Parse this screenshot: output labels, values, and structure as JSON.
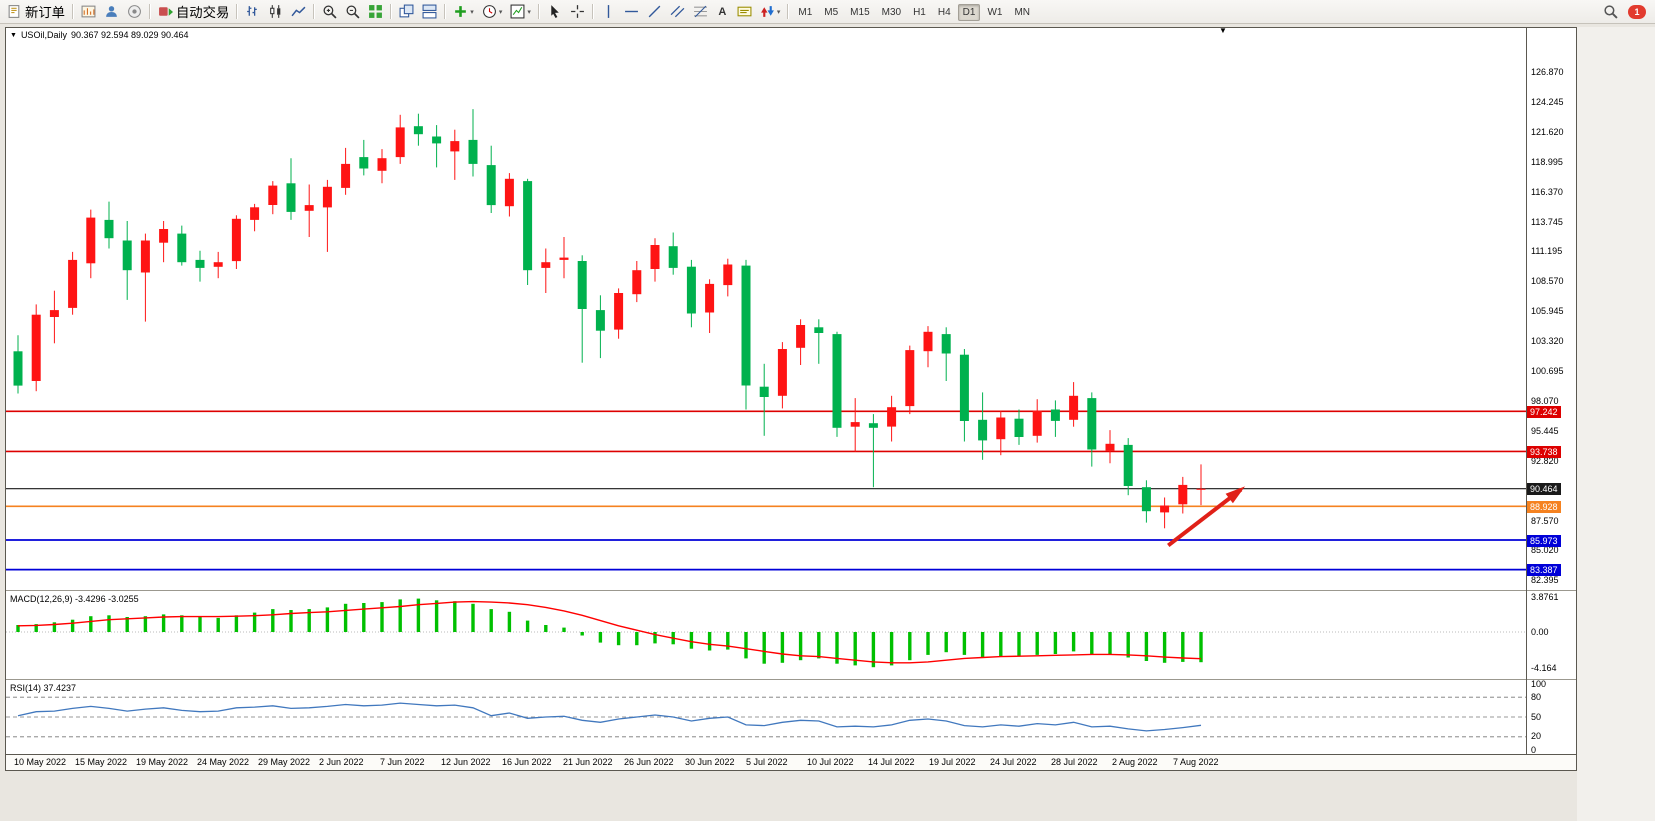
{
  "toolbar": {
    "new_order_label": "新订单",
    "auto_trading_label": "自动交易",
    "timeframes": [
      "M1",
      "M5",
      "M15",
      "M30",
      "H1",
      "H4",
      "D1",
      "W1",
      "MN"
    ],
    "active_timeframe": "D1",
    "notification_badge": "1"
  },
  "chart": {
    "collapse_icon": "▼",
    "symbol_title": "USOil,Daily",
    "quote_ohlc": "90.367 92.594 89.029 90.464",
    "shift_marker": "▼",
    "price_axis_labels": [
      "126.870",
      "124.245",
      "121.620",
      "118.995",
      "116.370",
      "113.745",
      "111.195",
      "108.570",
      "105.945",
      "103.320",
      "100.695",
      "98.070",
      "95.445",
      "92.820",
      "87.570",
      "85.020",
      "82.395"
    ],
    "hlines": [
      {
        "label": "97.242",
        "price": 97.242,
        "color": "#dd0000",
        "width": 1.6
      },
      {
        "label": "93.738",
        "price": 93.738,
        "color": "#dd0000",
        "width": 1.6
      },
      {
        "label": "90.464",
        "price": 90.464,
        "color": "#1a1a1a",
        "width": 1.1
      },
      {
        "label": "88.928",
        "price": 88.928,
        "color": "#f58220",
        "width": 1.6
      },
      {
        "label": "85.973",
        "price": 85.973,
        "color": "#0000d8",
        "width": 1.8
      },
      {
        "label": "83.387",
        "price": 83.387,
        "color": "#0000d8",
        "width": 1.8
      }
    ],
    "arrow": {
      "from_index": 63.2,
      "from_price": 85.5,
      "to_index": 67.2,
      "to_price": 90.4,
      "color": "#e02018"
    },
    "date_axis_labels": [
      "10 May 2022",
      "15 May 2022",
      "19 May 2022",
      "24 May 2022",
      "29 May 2022",
      "2 Jun 2022",
      "7 Jun 2022",
      "12 Jun 2022",
      "16 Jun 2022",
      "21 Jun 2022",
      "26 Jun 2022",
      "30 Jun 2022",
      "5 Jul 2022",
      "10 Jul 2022",
      "14 Jul 2022",
      "19 Jul 2022",
      "24 Jul 2022",
      "28 Jul 2022",
      "2 Aug 2022",
      "7 Aug 2022"
    ]
  },
  "macd_panel": {
    "label": "MACD(12,26,9)",
    "values": "-3.4296 -3.0255",
    "axis_labels": [
      {
        "text": "3.8761",
        "value": 3.8761
      },
      {
        "text": "0.00",
        "value": 0
      },
      {
        "text": "-4.164",
        "value": -4.164
      }
    ]
  },
  "rsi_panel": {
    "label": "RSI(14)",
    "value": "37.4237",
    "axis_labels": [
      {
        "text": "100",
        "value": 100
      },
      {
        "text": "80",
        "value": 80
      },
      {
        "text": "50",
        "value": 50
      },
      {
        "text": "20",
        "value": 20
      },
      {
        "text": "0",
        "value": 0
      }
    ],
    "levels": [
      80,
      50,
      20
    ]
  },
  "chart_data": [
    {
      "type": "candlestick",
      "name": "price",
      "title": "USOil Daily",
      "up_color": "#fe1414",
      "down_color": "#00b14e",
      "ylim": [
        81.6,
        130.8
      ],
      "ohlc": [
        [
          102.5,
          103.9,
          98.8,
          99.5
        ],
        [
          99.9,
          106.6,
          99.0,
          105.7
        ],
        [
          105.5,
          107.8,
          103.2,
          106.1
        ],
        [
          106.3,
          111.2,
          105.7,
          110.5
        ],
        [
          110.2,
          114.9,
          108.9,
          114.2
        ],
        [
          114.0,
          115.6,
          111.5,
          112.4
        ],
        [
          112.2,
          113.9,
          107.0,
          109.6
        ],
        [
          109.4,
          112.8,
          105.1,
          112.2
        ],
        [
          112.0,
          113.9,
          110.3,
          113.2
        ],
        [
          112.8,
          113.5,
          110.0,
          110.3
        ],
        [
          110.5,
          111.3,
          108.6,
          109.8
        ],
        [
          109.9,
          111.2,
          108.9,
          110.3
        ],
        [
          110.4,
          114.4,
          109.7,
          114.1
        ],
        [
          114.0,
          115.4,
          113.0,
          115.1
        ],
        [
          115.3,
          117.4,
          114.5,
          117.0
        ],
        [
          117.2,
          119.4,
          114.0,
          114.7
        ],
        [
          114.8,
          117.1,
          112.5,
          115.3
        ],
        [
          115.1,
          117.5,
          111.2,
          116.9
        ],
        [
          116.8,
          120.3,
          116.2,
          118.9
        ],
        [
          119.5,
          121.0,
          117.9,
          118.5
        ],
        [
          118.3,
          120.2,
          117.2,
          119.4
        ],
        [
          119.5,
          123.2,
          118.9,
          122.1
        ],
        [
          122.2,
          123.3,
          120.5,
          121.5
        ],
        [
          121.3,
          122.3,
          118.6,
          120.7
        ],
        [
          120.0,
          121.9,
          117.5,
          120.9
        ],
        [
          121.0,
          123.7,
          117.8,
          118.9
        ],
        [
          118.8,
          120.5,
          114.6,
          115.3
        ],
        [
          115.2,
          118.1,
          114.3,
          117.6
        ],
        [
          117.4,
          117.6,
          108.3,
          109.6
        ],
        [
          109.8,
          111.5,
          107.6,
          110.3
        ],
        [
          110.5,
          112.5,
          108.9,
          110.7
        ],
        [
          110.4,
          110.9,
          101.5,
          106.2
        ],
        [
          106.1,
          107.4,
          101.9,
          104.3
        ],
        [
          104.4,
          108.0,
          103.6,
          107.6
        ],
        [
          107.5,
          110.4,
          106.8,
          109.6
        ],
        [
          109.7,
          112.4,
          108.6,
          111.8
        ],
        [
          111.7,
          112.9,
          109.2,
          109.8
        ],
        [
          109.9,
          110.5,
          104.6,
          105.8
        ],
        [
          105.9,
          108.8,
          104.1,
          108.4
        ],
        [
          108.3,
          110.6,
          107.3,
          110.1
        ],
        [
          110.0,
          110.5,
          97.4,
          99.5
        ],
        [
          99.4,
          101.4,
          95.1,
          98.5
        ],
        [
          98.6,
          103.3,
          97.5,
          102.7
        ],
        [
          102.8,
          105.3,
          101.3,
          104.8
        ],
        [
          104.6,
          105.3,
          101.4,
          104.1
        ],
        [
          104.0,
          104.2,
          95.0,
          95.8
        ],
        [
          95.9,
          98.4,
          93.7,
          96.3
        ],
        [
          96.2,
          97.0,
          90.6,
          95.8
        ],
        [
          95.9,
          98.6,
          94.6,
          97.6
        ],
        [
          97.7,
          103.0,
          97.0,
          102.6
        ],
        [
          102.5,
          104.7,
          101.1,
          104.2
        ],
        [
          104.0,
          104.6,
          99.9,
          102.3
        ],
        [
          102.2,
          102.7,
          94.6,
          96.4
        ],
        [
          96.5,
          98.9,
          93.0,
          94.7
        ],
        [
          94.8,
          97.3,
          93.4,
          96.7
        ],
        [
          96.6,
          97.4,
          94.3,
          95.0
        ],
        [
          95.1,
          98.3,
          94.5,
          97.3
        ],
        [
          97.4,
          98.2,
          95.0,
          96.4
        ],
        [
          96.5,
          99.8,
          95.9,
          98.6
        ],
        [
          98.4,
          98.9,
          92.4,
          93.9
        ],
        [
          93.8,
          95.6,
          92.7,
          94.4
        ],
        [
          94.3,
          94.9,
          89.9,
          90.7
        ],
        [
          90.6,
          91.2,
          87.5,
          88.5
        ],
        [
          88.4,
          89.7,
          87.0,
          89.0
        ],
        [
          89.1,
          91.5,
          88.3,
          90.8
        ],
        [
          90.367,
          92.594,
          89.029,
          90.464
        ]
      ]
    },
    {
      "type": "bar",
      "name": "macd_histogram",
      "color": "#00c000",
      "values": [
        0.8,
        0.9,
        1.1,
        1.4,
        1.8,
        1.9,
        1.7,
        1.8,
        2.0,
        1.9,
        1.7,
        1.6,
        1.9,
        2.2,
        2.6,
        2.5,
        2.6,
        2.8,
        3.2,
        3.3,
        3.4,
        3.7,
        3.8,
        3.6,
        3.5,
        3.2,
        2.6,
        2.3,
        1.3,
        0.8,
        0.5,
        -0.4,
        -1.2,
        -1.5,
        -1.5,
        -1.3,
        -1.4,
        -1.9,
        -2.1,
        -2.0,
        -3.0,
        -3.6,
        -3.5,
        -3.2,
        -3.0,
        -3.6,
        -3.8,
        -4.0,
        -3.8,
        -3.2,
        -2.6,
        -2.3,
        -2.6,
        -2.9,
        -2.8,
        -2.8,
        -2.6,
        -2.5,
        -2.2,
        -2.6,
        -2.6,
        -2.9,
        -3.3,
        -3.5,
        -3.4,
        -3.43
      ]
    },
    {
      "type": "line",
      "name": "macd_signal",
      "color": "#ff0000",
      "values": [
        0.7,
        0.75,
        0.85,
        1.0,
        1.2,
        1.4,
        1.5,
        1.6,
        1.7,
        1.75,
        1.75,
        1.75,
        1.8,
        1.85,
        1.95,
        2.1,
        2.2,
        2.3,
        2.45,
        2.6,
        2.75,
        2.9,
        3.1,
        3.25,
        3.4,
        3.45,
        3.4,
        3.3,
        3.1,
        2.8,
        2.4,
        1.9,
        1.3,
        0.7,
        0.2,
        -0.3,
        -0.7,
        -1.1,
        -1.4,
        -1.6,
        -1.9,
        -2.2,
        -2.5,
        -2.7,
        -2.8,
        -3.0,
        -3.2,
        -3.4,
        -3.5,
        -3.5,
        -3.4,
        -3.2,
        -3.0,
        -2.9,
        -2.8,
        -2.75,
        -2.7,
        -2.65,
        -2.6,
        -2.55,
        -2.55,
        -2.6,
        -2.7,
        -2.85,
        -2.95,
        -3.03
      ]
    },
    {
      "type": "line",
      "name": "rsi",
      "color": "#4178be",
      "ylim": [
        0,
        100
      ],
      "values": [
        52,
        58,
        59,
        63,
        66,
        63,
        59,
        62,
        64,
        60,
        58,
        59,
        64,
        65,
        67,
        63,
        64,
        66,
        69,
        67,
        68,
        71,
        69,
        67,
        68,
        64,
        52,
        56,
        48,
        50,
        51,
        45,
        42,
        47,
        50,
        53,
        50,
        44,
        48,
        50,
        38,
        37,
        42,
        45,
        44,
        35,
        36,
        35,
        38,
        45,
        47,
        44,
        37,
        35,
        38,
        36,
        40,
        38,
        42,
        35,
        36,
        32,
        29,
        31,
        34,
        37.4
      ]
    }
  ]
}
